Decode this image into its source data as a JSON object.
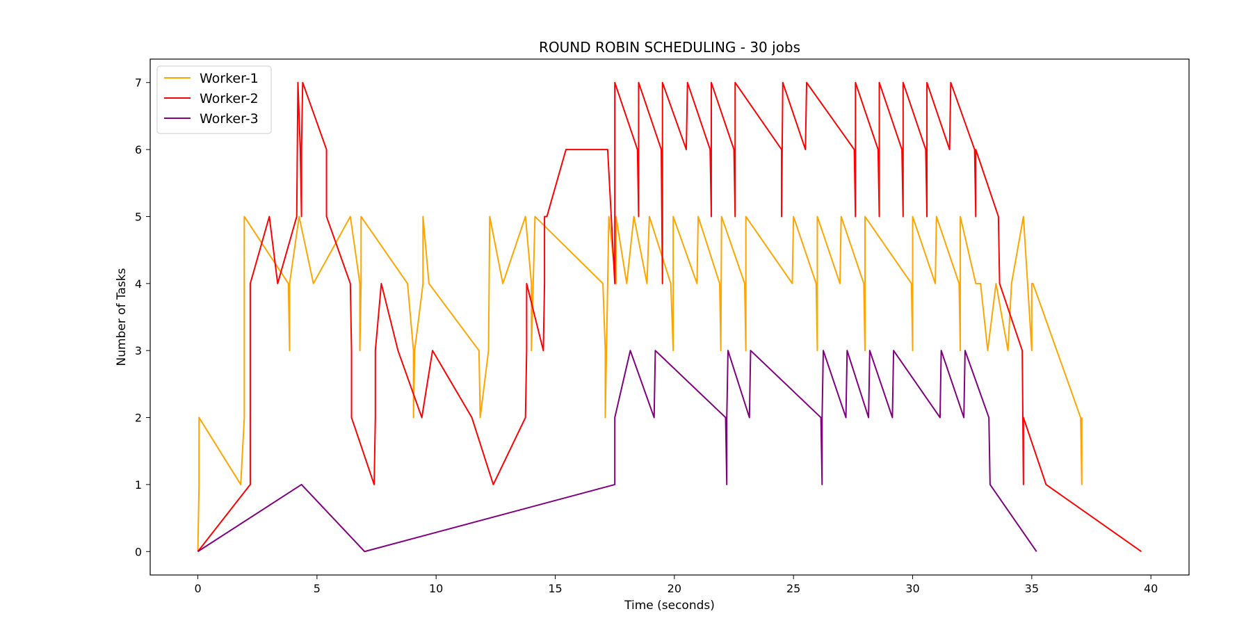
{
  "chart_data": {
    "type": "line",
    "title": "ROUND ROBIN SCHEDULING - 30 jobs",
    "xlabel": "Time (seconds)",
    "ylabel": "Number of Tasks",
    "xlim": [
      -2,
      41.6
    ],
    "ylim": [
      -0.35,
      7.35
    ],
    "xticks": [
      0,
      5,
      10,
      15,
      20,
      25,
      30,
      35,
      40
    ],
    "yticks": [
      0,
      1,
      2,
      3,
      4,
      5,
      6,
      7
    ],
    "grid": false,
    "legend_position": "top-left",
    "series": [
      {
        "name": "Worker-1",
        "color": "#ffa500",
        "x": [
          0,
          0.05,
          0.05,
          1.8,
          1.95,
          1.95,
          3.8,
          3.85,
          3.85,
          4.25,
          4.85,
          6.4,
          6.8,
          6.8,
          6.85,
          6.85,
          8.8,
          9.05,
          9.05,
          9.1,
          9.1,
          9.45,
          9.45,
          9.7,
          11.8,
          11.85,
          11.85,
          12.2,
          12.25,
          12.25,
          12.8,
          13.75,
          14.0,
          14.0,
          14.15,
          17.0,
          17.1,
          17.1,
          17.25,
          17.55,
          17.55,
          18.0,
          18.3,
          18.85,
          18.95,
          19.85,
          19.95,
          19.95,
          20.95,
          21.0,
          21.9,
          21.95,
          21.95,
          21.98,
          22.95,
          23.0,
          23.0,
          24.95,
          25.0,
          25.95,
          26.0,
          26.0,
          26.95,
          27.0,
          27.95,
          28.0,
          28.0,
          29.95,
          30.0,
          30.0,
          30.95,
          31.0,
          31.95,
          32.0,
          32.0,
          32.65,
          32.85,
          33.15,
          33.5,
          34.0,
          34.15,
          34.65,
          35.0,
          35.0,
          35.05,
          37.05,
          37.1,
          37.1
        ],
        "y": [
          0,
          1,
          2,
          1,
          2,
          5,
          4,
          3,
          4,
          5,
          4,
          5,
          4,
          3,
          4,
          5,
          4,
          3,
          2,
          3,
          3,
          4,
          5,
          4,
          3,
          2,
          2,
          3,
          5,
          5,
          4,
          5,
          4,
          3,
          5,
          4,
          3,
          2,
          5,
          4,
          5,
          4,
          5,
          4,
          5,
          4,
          3,
          5,
          4,
          5,
          4,
          3,
          3,
          5,
          4,
          3,
          5,
          4,
          5,
          4,
          3,
          5,
          4,
          5,
          4,
          3,
          5,
          4,
          3,
          5,
          4,
          5,
          4,
          3,
          5,
          4,
          4,
          3,
          4,
          3,
          4,
          5,
          3,
          4,
          4,
          2,
          1,
          2
        ]
      },
      {
        "name": "Worker-2",
        "color": "#ff0000",
        "x": [
          0,
          2.2,
          2.2,
          3.0,
          3.35,
          4.15,
          4.2,
          4.2,
          4.3,
          4.35,
          4.35,
          4.4,
          5.4,
          5.4,
          6.4,
          6.45,
          6.45,
          7.4,
          7.45,
          7.45,
          7.7,
          8.4,
          9.4,
          9.85,
          11.5,
          12.4,
          13.75,
          13.8,
          13.8,
          14.5,
          14.55,
          14.55,
          14.65,
          15.45,
          17.2,
          17.5,
          17.5,
          17.5,
          18.45,
          18.5,
          18.5,
          19.45,
          19.5,
          19.5,
          20.5,
          20.55,
          21.5,
          21.55,
          21.55,
          22.5,
          22.55,
          22.55,
          24.5,
          24.5,
          24.55,
          25.5,
          25.55,
          27.55,
          27.6,
          27.6,
          28.55,
          28.6,
          28.6,
          29.55,
          29.6,
          29.6,
          30.55,
          30.6,
          30.6,
          31.55,
          31.6,
          32.6,
          32.65,
          32.65,
          33.6,
          33.65,
          34.6,
          34.65,
          34.65,
          35.6,
          39.6
        ],
        "y": [
          0,
          1,
          4,
          5,
          4,
          5,
          7,
          7,
          6,
          5,
          6,
          7,
          6,
          5,
          4,
          3,
          2,
          1,
          2,
          3,
          4,
          3,
          2,
          3,
          2,
          1,
          2,
          3,
          4,
          3,
          4,
          5,
          5,
          6,
          6,
          4,
          6,
          7,
          6,
          5,
          7,
          6,
          4,
          7,
          6,
          7,
          6,
          5,
          7,
          6,
          5,
          7,
          6,
          5,
          7,
          6,
          7,
          6,
          5,
          7,
          6,
          5,
          7,
          6,
          5,
          7,
          6,
          5,
          7,
          6,
          7,
          6,
          5,
          6,
          5,
          4,
          3,
          1,
          2,
          1,
          0
        ]
      },
      {
        "name": "Worker-3",
        "color": "#800080",
        "x": [
          0,
          4.35,
          7.0,
          17.5,
          17.5,
          18.15,
          19.15,
          19.2,
          22.15,
          22.2,
          22.2,
          22.25,
          23.15,
          23.2,
          26.15,
          26.2,
          26.2,
          26.25,
          27.2,
          27.25,
          28.15,
          28.2,
          29.15,
          29.2,
          31.15,
          31.2,
          32.15,
          32.2,
          33.2,
          33.25,
          35.2
        ],
        "y": [
          0,
          1,
          0,
          1,
          2,
          3,
          2,
          3,
          2,
          1,
          2,
          3,
          2,
          3,
          2,
          1,
          2,
          3,
          2,
          3,
          2,
          3,
          2,
          3,
          2,
          3,
          2,
          3,
          2,
          1,
          0
        ]
      }
    ]
  }
}
